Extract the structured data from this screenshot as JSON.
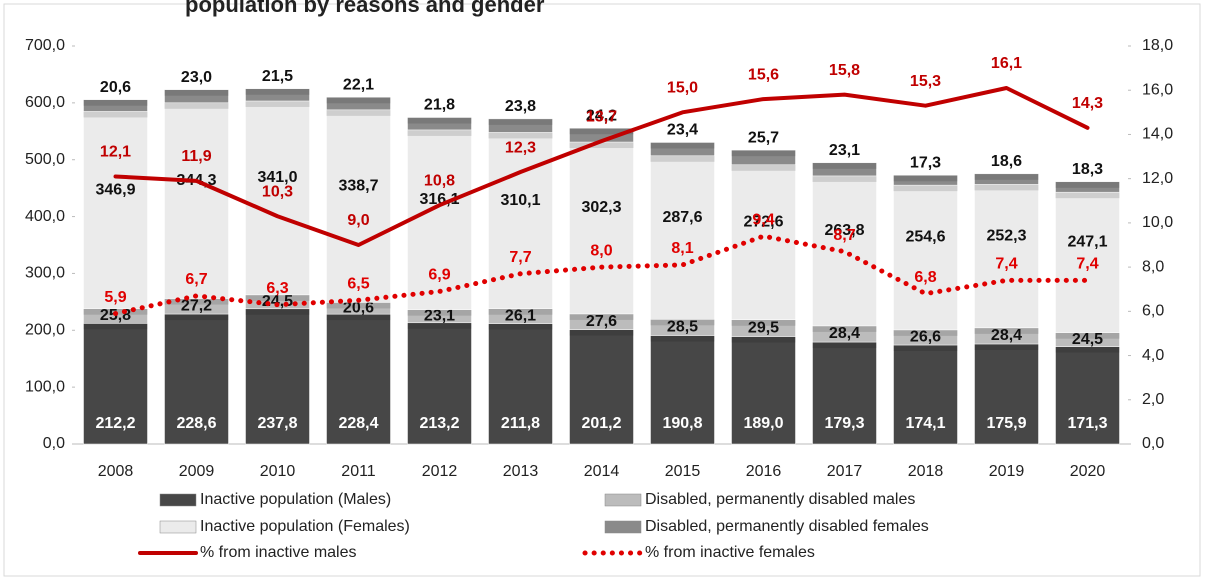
{
  "chart_data": {
    "type": "bar",
    "stacked": true,
    "title": "population by reasons and gender",
    "categories": [
      "2008",
      "2009",
      "2010",
      "2011",
      "2012",
      "2013",
      "2014",
      "2015",
      "2016",
      "2017",
      "2018",
      "2019",
      "2020"
    ],
    "ylim": [
      0,
      700
    ],
    "yticks": [
      {
        "value": 0,
        "label": "0,0"
      },
      {
        "value": 100,
        "label": "100,0"
      },
      {
        "value": 200,
        "label": "200,0"
      },
      {
        "value": 300,
        "label": "300,0"
      },
      {
        "value": 400,
        "label": "400,0"
      },
      {
        "value": 500,
        "label": "500,0"
      },
      {
        "value": 600,
        "label": "600,0"
      },
      {
        "value": 700,
        "label": "700,0"
      }
    ],
    "y2lim": [
      0,
      18
    ],
    "y2ticks": [
      {
        "value": 0,
        "label": "0,0"
      },
      {
        "value": 2,
        "label": "2,0"
      },
      {
        "value": 4,
        "label": "4,0"
      },
      {
        "value": 6,
        "label": "6,0"
      },
      {
        "value": 8,
        "label": "8,0"
      },
      {
        "value": 10,
        "label": "10,0"
      },
      {
        "value": 12,
        "label": "12,0"
      },
      {
        "value": 14,
        "label": "14,0"
      },
      {
        "value": 16,
        "label": "16,0"
      },
      {
        "value": 18,
        "label": "18,0"
      }
    ],
    "series": [
      {
        "name": "Inactive population (Males)",
        "type": "bar",
        "color": "#474747",
        "values": [
          212.2,
          228.6,
          237.8,
          228.4,
          213.2,
          211.8,
          201.2,
          190.8,
          189.0,
          179.3,
          174.1,
          175.9,
          171.3
        ],
        "value_labels": [
          "212,2",
          "228,6",
          "237,8",
          "228,4",
          "213,2",
          "211,8",
          "201,2",
          "190,8",
          "189,0",
          "179,3",
          "174,1",
          "175,9",
          "171,3"
        ]
      },
      {
        "name": "Disabled, permanently disabled males",
        "type": "bar",
        "color": "#bcbcbc",
        "values": [
          25.8,
          27.2,
          24.5,
          20.6,
          23.1,
          26.1,
          27.6,
          28.5,
          29.5,
          28.4,
          26.6,
          28.4,
          24.5
        ],
        "value_labels": [
          "25,8",
          "27,2",
          "24,5",
          "20,6",
          "23,1",
          "26,1",
          "27,6",
          "28,5",
          "29,5",
          "28,4",
          "26,6",
          "28,4",
          "24,5"
        ]
      },
      {
        "name": "Inactive population (Females)",
        "type": "bar",
        "color": "#ebebeb",
        "values": [
          346.9,
          344.3,
          341.0,
          338.7,
          316.1,
          310.1,
          302.3,
          287.6,
          272.6,
          263.8,
          254.6,
          252.3,
          247.1
        ],
        "value_labels": [
          "346,9",
          "344,3",
          "341,0",
          "338,7",
          "316,1",
          "310,1",
          "302,3",
          "287,6",
          "272,6",
          "263,8",
          "254,6",
          "252,3",
          "247,1"
        ]
      },
      {
        "name": "Disabled, permanently disabled females",
        "type": "bar",
        "color": "#8a8a8a",
        "values": [
          20.6,
          23.0,
          21.5,
          22.1,
          21.8,
          23.8,
          24.2,
          23.4,
          25.7,
          23.1,
          17.3,
          18.6,
          18.3
        ],
        "value_labels": [
          "20,6",
          "23,0",
          "21,5",
          "22,1",
          "21,8",
          "23,8",
          "24,2",
          "23,4",
          "25,7",
          "23,1",
          "17,3",
          "18,6",
          "18,3"
        ]
      },
      {
        "name": "% from inactive males",
        "type": "line",
        "axis": "y2",
        "color": "#c00000",
        "line_style": "solid",
        "values": [
          12.1,
          11.9,
          10.3,
          9.0,
          10.8,
          12.3,
          13.7,
          15.0,
          15.6,
          15.8,
          15.3,
          16.1,
          14.3
        ],
        "value_labels": [
          "12,1",
          "11,9",
          "10,3",
          "9,0",
          "10,8",
          "12,3",
          "13,7",
          "15,0",
          "15,6",
          "15,8",
          "15,3",
          "16,1",
          "14,3"
        ]
      },
      {
        "name": "% from inactive females",
        "type": "line",
        "axis": "y2",
        "color": "#e00000",
        "line_style": "dotted",
        "values": [
          5.9,
          6.7,
          6.3,
          6.5,
          6.9,
          7.7,
          8.0,
          8.1,
          9.4,
          8.7,
          6.8,
          7.4,
          7.4
        ],
        "value_labels": [
          "5,9",
          "6,7",
          "6,3",
          "6,5",
          "6,9",
          "7,7",
          "8,0",
          "8,1",
          "9,4",
          "8,7",
          "6,8",
          "7,4",
          "7,4"
        ]
      }
    ]
  }
}
